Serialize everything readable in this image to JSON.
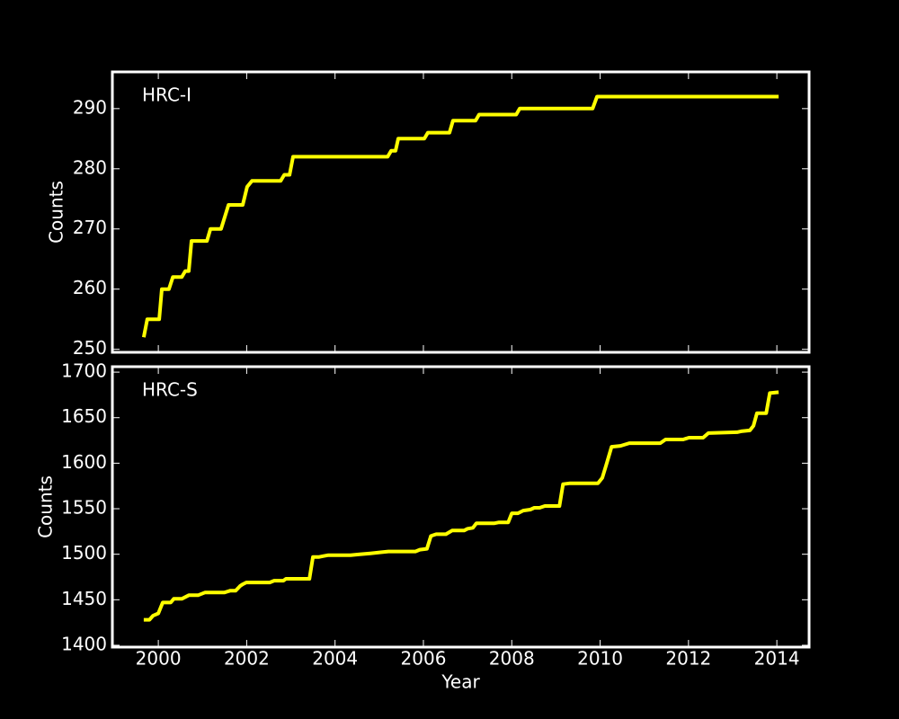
{
  "chart_data": [
    {
      "type": "line",
      "annotation": "HRC-I",
      "ylabel": "Counts",
      "color": "#ffff00",
      "xlim": [
        1998.96,
        2014.73
      ],
      "xticks": [
        2000,
        2002,
        2004,
        2006,
        2008,
        2010,
        2012,
        2014
      ],
      "ylim": [
        249.5,
        296.1
      ],
      "yticks": [
        250,
        260,
        270,
        280,
        290
      ],
      "x": [
        1999.67,
        1999.75,
        2000.02,
        2000.08,
        2000.24,
        2000.33,
        2000.53,
        2000.61,
        2000.69,
        2000.75,
        2001.1,
        2001.18,
        2001.42,
        2001.59,
        2001.91,
        2002.01,
        2002.12,
        2002.77,
        2002.85,
        2002.97,
        2003.05,
        2005.19,
        2005.27,
        2005.37,
        2005.43,
        2006.02,
        2006.1,
        2006.59,
        2006.67,
        2007.18,
        2007.26,
        2008.1,
        2008.18,
        2009.83,
        2009.93,
        2014.04
      ],
      "values": [
        252,
        255,
        255,
        260,
        260,
        262,
        262,
        263,
        263,
        268,
        268,
        270,
        270,
        274,
        274,
        277,
        278,
        278,
        279,
        279,
        282,
        282,
        283,
        283,
        285,
        285,
        286,
        286,
        288,
        288,
        289,
        289,
        290,
        290,
        292,
        292
      ]
    },
    {
      "type": "line",
      "annotation": "HRC-S",
      "ylabel": "Counts",
      "xlabel": "Year",
      "color": "#ffff00",
      "xlim": [
        1998.96,
        2014.73
      ],
      "xticks": [
        2000,
        2002,
        2004,
        2006,
        2008,
        2010,
        2012,
        2014
      ],
      "ylim": [
        1398,
        1706
      ],
      "yticks": [
        1400,
        1450,
        1500,
        1550,
        1600,
        1650,
        1700
      ],
      "x": [
        1999.67,
        1999.8,
        1999.88,
        2000,
        2000.1,
        2000.28,
        2000.35,
        2000.53,
        2000.69,
        2000.9,
        2001.06,
        2001.5,
        2001.63,
        2001.75,
        2001.85,
        2001.91,
        2001.99,
        2002.52,
        2002.62,
        2002.83,
        2002.89,
        2003.42,
        2003.5,
        2003.64,
        2003.74,
        2003.85,
        2004.35,
        2004.56,
        2004.8,
        2005.01,
        2005.21,
        2005.82,
        2005.92,
        2006.08,
        2006.17,
        2006.29,
        2006.51,
        2006.65,
        2006.92,
        2007,
        2007.12,
        2007.2,
        2007.61,
        2007.71,
        2007.92,
        2008,
        2008.14,
        2008.26,
        2008.42,
        2008.51,
        2008.63,
        2008.75,
        2009.08,
        2009.16,
        2009.32,
        2009.95,
        2010.05,
        2010.15,
        2010.26,
        2010.46,
        2010.66,
        2011.36,
        2011.48,
        2011.88,
        2012.01,
        2012.33,
        2012.45,
        2013.1,
        2013.19,
        2013.39,
        2013.47,
        2013.55,
        2013.76,
        2013.84,
        2014.04
      ],
      "values": [
        1428,
        1428,
        1432.5,
        1435,
        1447,
        1447,
        1451,
        1451,
        1455,
        1455,
        1458,
        1458,
        1460,
        1460,
        1465,
        1467,
        1469,
        1469,
        1471,
        1471,
        1473,
        1473,
        1497,
        1497,
        1498,
        1499,
        1499,
        1500,
        1501,
        1502,
        1503,
        1503,
        1505,
        1506,
        1520,
        1522,
        1522,
        1526,
        1526,
        1528,
        1529,
        1534,
        1534,
        1535,
        1535,
        1545,
        1545,
        1548,
        1549,
        1551,
        1551,
        1553,
        1553,
        1577,
        1578,
        1578,
        1584,
        1600,
        1618,
        1619,
        1622,
        1622,
        1626,
        1626,
        1628,
        1628,
        1633,
        1634,
        1635,
        1636,
        1641,
        1655,
        1655,
        1677,
        1678
      ]
    }
  ]
}
